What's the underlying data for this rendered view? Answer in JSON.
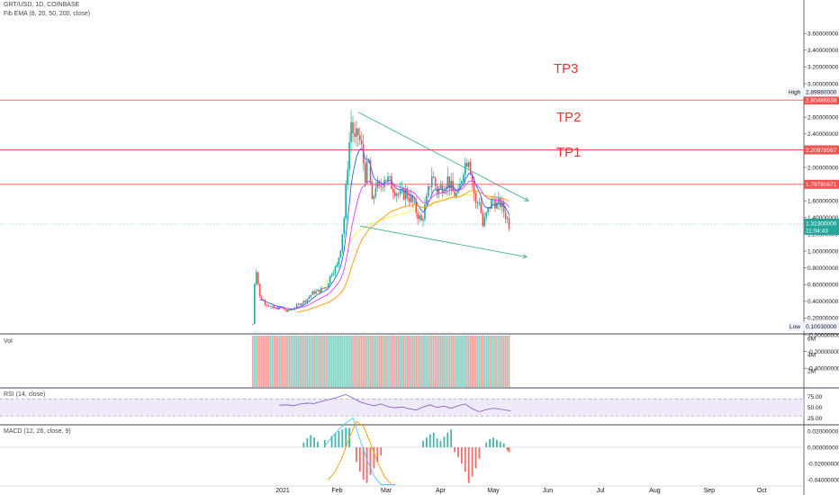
{
  "header": {
    "symbol_line": "GRT/USD, 1D, COINBASE",
    "indicator_line": "Fib EMA (8, 20, 50, 200, close)"
  },
  "panes": {
    "volume_label": "Vol",
    "rsi_label": "RSI (14, close)",
    "macd_label": "MACD (12, 26, close, 9)"
  },
  "colors": {
    "up": "#26a69a",
    "down": "#ef5350",
    "target_line": "#f05350",
    "trend_line": "#4caf92",
    "ema_fast": "#2962ff",
    "ema_mid": "#e040fb",
    "ema_slow": "#ff9800",
    "ema_200": "#fff176",
    "rsi_line": "#7e57c2",
    "price_tag": "#26a69a",
    "level_tag": "#f05350",
    "tp_text": "#e2382f"
  },
  "chart_data": {
    "type": "candlestick",
    "pair": "GRT/USD",
    "interval": "1D",
    "exchange": "COINBASE",
    "y_axis": {
      "range": [
        -0.4,
        3.6
      ],
      "ticks": [
        "3.60000000",
        "3.40000000",
        "3.20000000",
        "3.00000000",
        "2.80000000",
        "2.60000000",
        "2.40000000",
        "2.20000000",
        "2.00000000",
        "1.80000000",
        "1.60000000",
        "1.40000000",
        "1.20000000",
        "1.00000000",
        "0.80000000",
        "0.60000000",
        "0.40000000",
        "0.20000000",
        "-0.00000000",
        "-0.20000000",
        "-0.40000000"
      ],
      "tick_values": [
        3.6,
        3.4,
        3.2,
        3.0,
        2.8,
        2.6,
        2.4,
        2.2,
        2.0,
        1.8,
        1.6,
        1.4,
        1.2,
        1.0,
        0.8,
        0.6,
        0.4,
        0.2,
        0,
        -0.2,
        -0.4
      ],
      "unit": "USD"
    },
    "x_axis": {
      "labels": [
        "2021",
        "Feb",
        "Mar",
        "Apr",
        "May",
        "Jun",
        "Jul",
        "Aug",
        "Sep",
        "Oct"
      ],
      "label_days": [
        0,
        31,
        59,
        90,
        120,
        151,
        181,
        212,
        243,
        273
      ]
    },
    "price_points": [
      {
        "day": -17,
        "price": 0.13
      },
      {
        "day": -16,
        "price": 0.62
      },
      {
        "day": -15,
        "price": 0.78
      },
      {
        "day": -13,
        "price": 0.45
      },
      {
        "day": -10,
        "price": 0.38
      },
      {
        "day": -7,
        "price": 0.34
      },
      {
        "day": -4,
        "price": 0.31
      },
      {
        "day": -1,
        "price": 0.33
      },
      {
        "day": 2,
        "price": 0.28
      },
      {
        "day": 5,
        "price": 0.3
      },
      {
        "day": 9,
        "price": 0.36
      },
      {
        "day": 13,
        "price": 0.41
      },
      {
        "day": 17,
        "price": 0.5
      },
      {
        "day": 21,
        "price": 0.53
      },
      {
        "day": 25,
        "price": 0.58
      },
      {
        "day": 28,
        "price": 0.75
      },
      {
        "day": 31,
        "price": 0.82
      },
      {
        "day": 33,
        "price": 1.05
      },
      {
        "day": 35,
        "price": 1.4
      },
      {
        "day": 37,
        "price": 2.05
      },
      {
        "day": 39,
        "price": 2.55
      },
      {
        "day": 41,
        "price": 2.3
      },
      {
        "day": 43,
        "price": 2.4
      },
      {
        "day": 45,
        "price": 2.22
      },
      {
        "day": 47,
        "price": 1.9
      },
      {
        "day": 49,
        "price": 2.05
      },
      {
        "day": 51,
        "price": 1.55
      },
      {
        "day": 53,
        "price": 1.8
      },
      {
        "day": 55,
        "price": 1.72
      },
      {
        "day": 58,
        "price": 1.9
      },
      {
        "day": 61,
        "price": 1.82
      },
      {
        "day": 64,
        "price": 1.74
      },
      {
        "day": 67,
        "price": 1.66
      },
      {
        "day": 70,
        "price": 1.7
      },
      {
        "day": 73,
        "price": 1.62
      },
      {
        "day": 76,
        "price": 1.48
      },
      {
        "day": 79,
        "price": 1.35
      },
      {
        "day": 82,
        "price": 1.6
      },
      {
        "day": 85,
        "price": 1.92
      },
      {
        "day": 88,
        "price": 1.72
      },
      {
        "day": 91,
        "price": 1.78
      },
      {
        "day": 94,
        "price": 1.86
      },
      {
        "day": 97,
        "price": 1.7
      },
      {
        "day": 100,
        "price": 1.66
      },
      {
        "day": 103,
        "price": 2.0
      },
      {
        "day": 106,
        "price": 2.14
      },
      {
        "day": 108,
        "price": 1.85
      },
      {
        "day": 110,
        "price": 1.55
      },
      {
        "day": 112,
        "price": 1.62
      },
      {
        "day": 114,
        "price": 1.3
      },
      {
        "day": 116,
        "price": 1.43
      },
      {
        "day": 118,
        "price": 1.54
      },
      {
        "day": 120,
        "price": 1.62
      },
      {
        "day": 122,
        "price": 1.55
      },
      {
        "day": 124,
        "price": 1.57
      },
      {
        "day": 126,
        "price": 1.48
      },
      {
        "day": 128,
        "price": 1.38
      },
      {
        "day": 129,
        "price": 1.32
      }
    ],
    "ema_200": [
      {
        "day": 18,
        "value": 0.45
      },
      {
        "day": 24,
        "value": 0.58
      },
      {
        "day": 30,
        "value": 0.8
      },
      {
        "day": 36,
        "value": 1.05
      },
      {
        "day": 42,
        "value": 1.22
      },
      {
        "day": 50,
        "value": 1.33
      },
      {
        "day": 60,
        "value": 1.4
      },
      {
        "day": 70,
        "value": 1.46
      },
      {
        "day": 80,
        "value": 1.52
      },
      {
        "day": 90,
        "value": 1.62
      },
      {
        "day": 100,
        "value": 1.66
      },
      {
        "day": 110,
        "value": 1.68
      }
    ],
    "levels": [
      {
        "name": "TP3",
        "value": 2.80486638,
        "label": "2.80486638"
      },
      {
        "name": "TP2",
        "value": 2.20978567,
        "label": "2.20978567"
      },
      {
        "name": "TP1",
        "value": 1.79780671,
        "label": "1.79780671"
      }
    ],
    "current_price": {
      "value": 1.323,
      "label": "1.32300000",
      "countdown": "11:04:43"
    },
    "high": {
      "label": "High",
      "value": 2.8988,
      "value_label": "2.89880000"
    },
    "low": {
      "label": "Low",
      "value": 0.1003,
      "value_label": "0.10030000"
    },
    "trendlines": [
      {
        "from": {
          "day": 43,
          "price": 2.66
        },
        "to": {
          "day": 140,
          "price": 1.6
        }
      },
      {
        "from": {
          "day": 44,
          "price": 1.3
        },
        "to": {
          "day": 139,
          "price": 0.93
        }
      }
    ],
    "tp_labels": [
      "TP3",
      "TP2",
      "TP1"
    ],
    "volume": {
      "ticks": [
        "6M",
        "4M",
        "2M"
      ],
      "tick_values": [
        6,
        4,
        2
      ],
      "unit_max": 6
    },
    "rsi": {
      "ticks": [
        "75.00",
        "50.00",
        "25.00"
      ],
      "tick_values": [
        75,
        50,
        25
      ],
      "upper_band": 70,
      "lower_band": 30,
      "values": [
        {
          "day": -2,
          "v": 55
        },
        {
          "day": 3,
          "v": 56
        },
        {
          "day": 6,
          "v": 54
        },
        {
          "day": 10,
          "v": 58
        },
        {
          "day": 14,
          "v": 60
        },
        {
          "day": 18,
          "v": 59
        },
        {
          "day": 22,
          "v": 64
        },
        {
          "day": 26,
          "v": 68
        },
        {
          "day": 30,
          "v": 72
        },
        {
          "day": 33,
          "v": 76
        },
        {
          "day": 36,
          "v": 80
        },
        {
          "day": 40,
          "v": 72
        },
        {
          "day": 44,
          "v": 63
        },
        {
          "day": 48,
          "v": 58
        },
        {
          "day": 52,
          "v": 54
        },
        {
          "day": 56,
          "v": 58
        },
        {
          "day": 60,
          "v": 52
        },
        {
          "day": 64,
          "v": 49
        },
        {
          "day": 68,
          "v": 51
        },
        {
          "day": 72,
          "v": 47
        },
        {
          "day": 76,
          "v": 44
        },
        {
          "day": 80,
          "v": 51
        },
        {
          "day": 84,
          "v": 56
        },
        {
          "day": 88,
          "v": 50
        },
        {
          "day": 92,
          "v": 53
        },
        {
          "day": 96,
          "v": 48
        },
        {
          "day": 100,
          "v": 54
        },
        {
          "day": 104,
          "v": 58
        },
        {
          "day": 108,
          "v": 47
        },
        {
          "day": 112,
          "v": 40
        },
        {
          "day": 116,
          "v": 45
        },
        {
          "day": 120,
          "v": 48
        },
        {
          "day": 124,
          "v": 46
        },
        {
          "day": 128,
          "v": 43
        },
        {
          "day": 130,
          "v": 42
        }
      ]
    },
    "macd": {
      "ticks": [
        "0.02000000",
        "0.00000000",
        "-0.02000000",
        "-0.04000000"
      ],
      "tick_values": [
        0.02,
        0,
        -0.02,
        -0.04
      ],
      "histogram": [
        {
          "day": 12,
          "v": 0.006
        },
        {
          "day": 14,
          "v": 0.011
        },
        {
          "day": 16,
          "v": 0.015
        },
        {
          "day": 18,
          "v": 0.012
        },
        {
          "day": 20,
          "v": 0.007
        },
        {
          "day": 24,
          "v": 0.009
        },
        {
          "day": 28,
          "v": 0.014
        },
        {
          "day": 30,
          "v": 0.018
        },
        {
          "day": 32,
          "v": 0.02
        },
        {
          "day": 34,
          "v": 0.022
        },
        {
          "day": 36,
          "v": 0.024
        },
        {
          "day": 38,
          "v": 0.024
        },
        {
          "day": 42,
          "v": -0.018
        },
        {
          "day": 44,
          "v": -0.03
        },
        {
          "day": 46,
          "v": -0.04
        },
        {
          "day": 48,
          "v": -0.044
        },
        {
          "day": 50,
          "v": -0.034
        },
        {
          "day": 52,
          "v": -0.026
        },
        {
          "day": 54,
          "v": -0.018
        },
        {
          "day": 56,
          "v": -0.01
        },
        {
          "day": 80,
          "v": 0.008
        },
        {
          "day": 82,
          "v": 0.012
        },
        {
          "day": 84,
          "v": 0.016
        },
        {
          "day": 86,
          "v": 0.018
        },
        {
          "day": 88,
          "v": 0.011
        },
        {
          "day": 90,
          "v": 0.008
        },
        {
          "day": 92,
          "v": 0.013
        },
        {
          "day": 94,
          "v": 0.018
        },
        {
          "day": 96,
          "v": 0.022
        },
        {
          "day": 98,
          "v": -0.006
        },
        {
          "day": 100,
          "v": -0.012
        },
        {
          "day": 102,
          "v": -0.02
        },
        {
          "day": 104,
          "v": -0.03
        },
        {
          "day": 106,
          "v": -0.044
        },
        {
          "day": 108,
          "v": -0.036
        },
        {
          "day": 110,
          "v": -0.026
        },
        {
          "day": 112,
          "v": -0.014
        },
        {
          "day": 116,
          "v": 0.006
        },
        {
          "day": 118,
          "v": 0.01
        },
        {
          "day": 120,
          "v": 0.012
        },
        {
          "day": 122,
          "v": 0.009
        },
        {
          "day": 124,
          "v": 0.007
        },
        {
          "day": 126,
          "v": 0.005
        },
        {
          "day": 128,
          "v": -0.004
        },
        {
          "day": 129,
          "v": -0.006
        }
      ],
      "macd_line": [
        {
          "day": 24,
          "v": 0.002
        },
        {
          "day": 28,
          "v": 0.012
        },
        {
          "day": 32,
          "v": 0.022
        },
        {
          "day": 36,
          "v": 0.03
        },
        {
          "day": 40,
          "v": 0.036
        },
        {
          "day": 44,
          "v": 0.01
        },
        {
          "day": 48,
          "v": -0.015
        },
        {
          "day": 52,
          "v": -0.035
        },
        {
          "day": 56,
          "v": -0.046
        },
        {
          "day": 60,
          "v": -0.046
        },
        {
          "day": 64,
          "v": -0.046
        }
      ],
      "signal_line": [
        {
          "day": 26,
          "v": -0.04
        },
        {
          "day": 30,
          "v": -0.03
        },
        {
          "day": 34,
          "v": -0.012
        },
        {
          "day": 38,
          "v": 0.012
        },
        {
          "day": 42,
          "v": 0.032
        },
        {
          "day": 46,
          "v": 0.026
        },
        {
          "day": 50,
          "v": 0.005
        },
        {
          "day": 54,
          "v": -0.018
        },
        {
          "day": 58,
          "v": -0.036
        },
        {
          "day": 62,
          "v": -0.046
        }
      ]
    }
  }
}
